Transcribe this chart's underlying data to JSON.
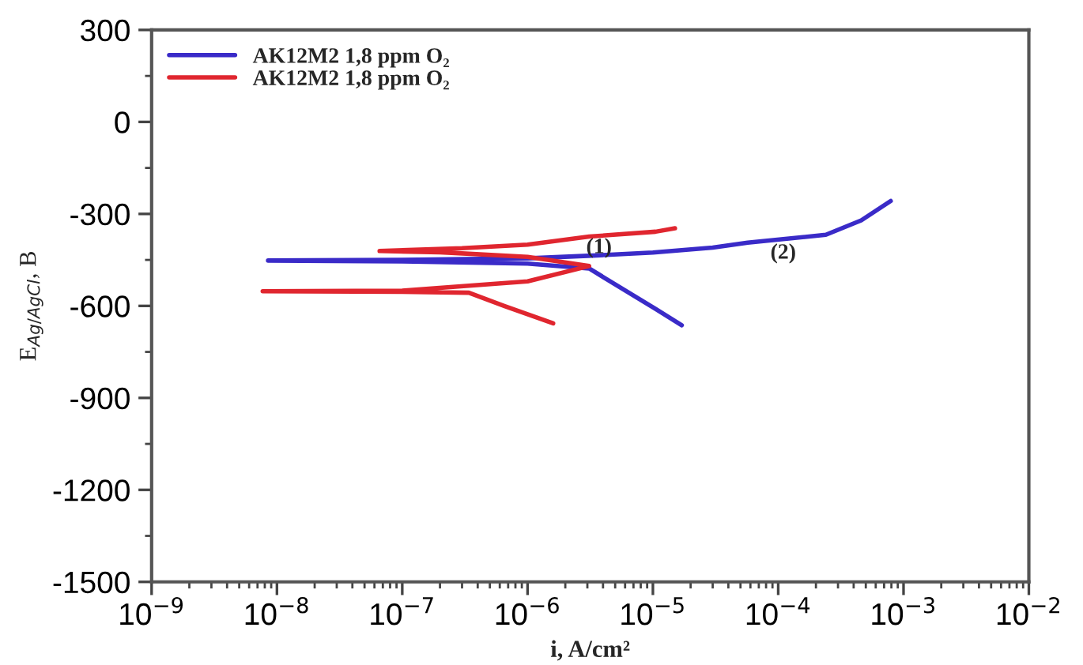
{
  "chart_data": {
    "type": "line",
    "xlabel": "i, A/cm²",
    "ylabel": "E$_{Ag/AgCl}$, B",
    "log": "x",
    "xlim": [
      1e-09,
      0.01
    ],
    "ylim": [
      -1500,
      300
    ],
    "xticks": [
      {
        "value": 1e-09,
        "label": "10$^{−9}$"
      },
      {
        "value": 1e-08,
        "label": "10$^{−8}$"
      },
      {
        "value": 1e-07,
        "label": "10$^{−7}$"
      },
      {
        "value": 1e-06,
        "label": "10$^{−6}$"
      },
      {
        "value": 1e-05,
        "label": "10$^{−5}$"
      },
      {
        "value": 0.0001,
        "label": "10$^{−4}$"
      },
      {
        "value": 0.001,
        "label": "10$^{−3}$"
      },
      {
        "value": 0.01,
        "label": "10$^{−2}$"
      }
    ],
    "yticks": [
      -1500,
      -1200,
      -900,
      -600,
      -300,
      0,
      300
    ],
    "grid": false,
    "legend": "top left",
    "marker": "none",
    "line_style": "solid",
    "series": [
      {
        "name": "AK12M2 1,8 ppm O₂",
        "color": "#3a2bc8",
        "x": [
          1.7e-05,
          1.05e-05,
          3.1e-06,
          1e-06,
          1e-07,
          8.5e-09,
          1e-07,
          1e-06,
          3.3e-06,
          1e-05,
          3e-05,
          5.7e-05,
          0.00024,
          0.00046,
          0.00079
        ],
        "values": [
          -663,
          -610,
          -478,
          -462,
          -455,
          -452,
          -450,
          -445,
          -436,
          -426,
          -410,
          -394,
          -368,
          -321,
          -258
        ]
      },
      {
        "name": "AK12M2 1,8 ppm O₂",
        "color": "#e0262f",
        "x": [
          1.6e-06,
          6.5e-07,
          3.4e-07,
          1e-07,
          7.7e-09,
          1e-07,
          1e-06,
          3.1e-06,
          1e-06,
          2e-07,
          6.6e-08,
          3e-07,
          1e-06,
          3.1e-06,
          1.05e-05,
          1.5e-05
        ],
        "values": [
          -657,
          -600,
          -557,
          -554,
          -552,
          -550,
          -520,
          -470,
          -440,
          -425,
          -421,
          -412,
          -400,
          -374,
          -358,
          -347
        ]
      }
    ],
    "annotations": [
      "(1)",
      "(2)"
    ]
  }
}
